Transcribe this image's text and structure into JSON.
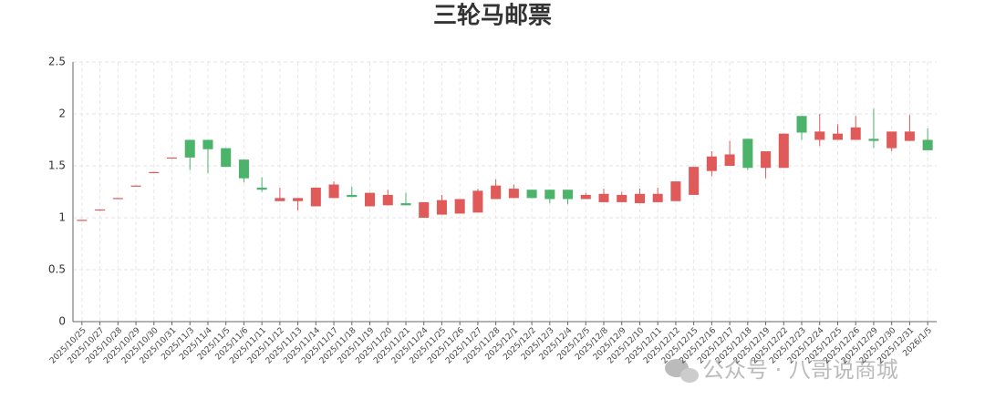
{
  "chart_data": {
    "type": "candlestick",
    "title": "三轮马邮票",
    "watermark": "公众号 · 八哥说商城",
    "categories": [
      "2025/10/25",
      "2025/10/27",
      "2025/10/28",
      "2025/10/29",
      "2025/10/30",
      "2025/10/31",
      "2025/11/3",
      "2025/11/4",
      "2025/11/5",
      "2025/11/6",
      "2025/11/11",
      "2025/11/12",
      "2025/11/13",
      "2025/11/14",
      "2025/11/17",
      "2025/11/18",
      "2025/11/19",
      "2025/11/20",
      "2025/11/21",
      "2025/11/24",
      "2025/11/25",
      "2025/11/26",
      "2025/11/27",
      "2025/11/28",
      "2025/12/1",
      "2025/12/2",
      "2025/12/3",
      "2025/12/4",
      "2025/12/5",
      "2025/12/8",
      "2025/12/9",
      "2025/12/10",
      "2025/12/11",
      "2025/12/12",
      "2025/12/15",
      "2025/12/16",
      "2025/12/17",
      "2025/12/18",
      "2025/12/19",
      "2025/12/22",
      "2025/12/23",
      "2025/12/24",
      "2025/12/25",
      "2025/12/26",
      "2025/12/29",
      "2025/12/30",
      "2025/12/31",
      "2026/1/5"
    ],
    "open": [
      0.97,
      1.07,
      1.18,
      1.3,
      1.43,
      1.57,
      1.75,
      1.75,
      1.67,
      1.56,
      1.29,
      1.16,
      1.16,
      1.11,
      1.19,
      1.22,
      1.11,
      1.12,
      1.14,
      1.0,
      1.03,
      1.04,
      1.05,
      1.18,
      1.19,
      1.27,
      1.27,
      1.27,
      1.18,
      1.15,
      1.15,
      1.14,
      1.15,
      1.16,
      1.22,
      1.45,
      1.5,
      1.76,
      1.48,
      1.48,
      1.98,
      1.75,
      1.75,
      1.75,
      1.76,
      1.67,
      1.74,
      1.75
    ],
    "close": [
      0.98,
      1.08,
      1.19,
      1.31,
      1.44,
      1.58,
      1.58,
      1.66,
      1.49,
      1.38,
      1.27,
      1.19,
      1.19,
      1.29,
      1.32,
      1.2,
      1.24,
      1.22,
      1.12,
      1.15,
      1.17,
      1.18,
      1.26,
      1.31,
      1.28,
      1.19,
      1.18,
      1.18,
      1.22,
      1.23,
      1.22,
      1.23,
      1.23,
      1.35,
      1.49,
      1.59,
      1.61,
      1.48,
      1.64,
      1.81,
      1.82,
      1.83,
      1.81,
      1.87,
      1.74,
      1.83,
      1.83,
      1.65
    ],
    "low": [
      0.97,
      1.07,
      1.18,
      1.3,
      1.43,
      1.57,
      1.46,
      1.43,
      1.49,
      1.34,
      1.25,
      1.16,
      1.07,
      1.11,
      1.19,
      1.2,
      1.11,
      1.12,
      1.12,
      1.0,
      1.03,
      1.04,
      1.05,
      1.18,
      1.19,
      1.19,
      1.14,
      1.13,
      1.18,
      1.15,
      1.15,
      1.14,
      1.15,
      1.16,
      1.22,
      1.4,
      1.5,
      1.46,
      1.38,
      1.48,
      1.75,
      1.69,
      1.75,
      1.75,
      1.67,
      1.64,
      1.74,
      1.65
    ],
    "high": [
      0.98,
      1.08,
      1.19,
      1.31,
      1.44,
      1.58,
      1.75,
      1.75,
      1.67,
      1.56,
      1.39,
      1.29,
      1.19,
      1.29,
      1.35,
      1.3,
      1.24,
      1.27,
      1.24,
      1.15,
      1.22,
      1.18,
      1.28,
      1.37,
      1.32,
      1.27,
      1.27,
      1.27,
      1.24,
      1.28,
      1.25,
      1.28,
      1.29,
      1.35,
      1.49,
      1.64,
      1.74,
      1.76,
      1.64,
      1.81,
      1.98,
      2.0,
      1.9,
      1.98,
      2.05,
      1.83,
      1.99,
      1.86
    ],
    "up_color": "#e05a5a",
    "down_color": "#4cb36a",
    "ylim": [
      0,
      2.5
    ],
    "yticks": [
      0,
      0.5,
      1,
      1.5,
      2,
      2.5
    ],
    "grid": true
  }
}
